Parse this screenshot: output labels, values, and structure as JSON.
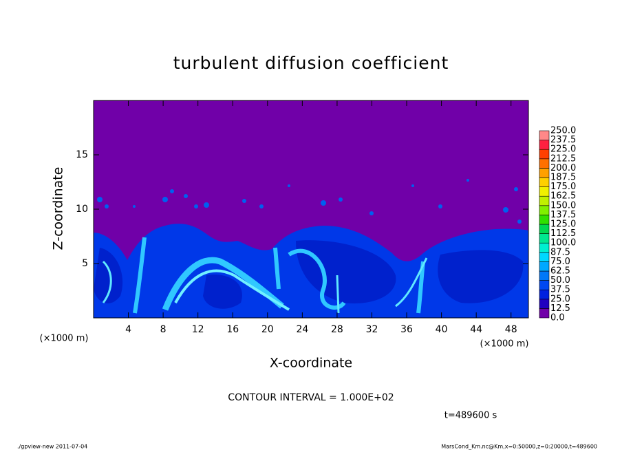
{
  "chart_data": {
    "type": "heatmap",
    "title": "turbulent diffusion coefficient",
    "xlabel": "X-coordinate",
    "ylabel": "Z-coordinate",
    "xlim": [
      0,
      50
    ],
    "ylim": [
      0,
      20
    ],
    "xticks": [
      4,
      8,
      12,
      16,
      20,
      24,
      28,
      32,
      36,
      40,
      44,
      48
    ],
    "yticks": [
      5,
      10,
      15
    ],
    "x_unit": "(×1000 m)",
    "y_unit": "(×1000 m)",
    "colorbar": {
      "levels": [
        {
          "value": 0,
          "label": "0.0"
        },
        {
          "value": 12.5,
          "label": "12.5"
        },
        {
          "value": 25,
          "label": "25.0"
        },
        {
          "value": 37.5,
          "label": "37.5"
        },
        {
          "value": 50,
          "label": "50.0"
        },
        {
          "value": 62.5,
          "label": "62.5"
        },
        {
          "value": 75,
          "label": "75.0"
        },
        {
          "value": 87.5,
          "label": "87.5"
        },
        {
          "value": 100,
          "label": "100.0"
        },
        {
          "value": 112.5,
          "label": "112.5"
        },
        {
          "value": 125,
          "label": "125.0"
        },
        {
          "value": 137.5,
          "label": "137.5"
        },
        {
          "value": 150,
          "label": "150.0"
        },
        {
          "value": 162.5,
          "label": "162.5"
        },
        {
          "value": 175,
          "label": "175.0"
        },
        {
          "value": 187.5,
          "label": "187.5"
        },
        {
          "value": 200,
          "label": "200.0"
        },
        {
          "value": 212.5,
          "label": "212.5"
        },
        {
          "value": 225,
          "label": "225.0"
        },
        {
          "value": 237.5,
          "label": "237.5"
        },
        {
          "value": 250,
          "label": "250.0"
        }
      ],
      "colors": [
        "#7000a8",
        "#2000c0",
        "#0020e0",
        "#0048f0",
        "#0078f8",
        "#00a8ff",
        "#00d8ff",
        "#00f0d0",
        "#00e890",
        "#00d850",
        "#30e000",
        "#80f000",
        "#c0f000",
        "#f0f000",
        "#ffd000",
        "#ffa000",
        "#ff7000",
        "#ff4000",
        "#ff2040",
        "#ff8888"
      ]
    },
    "contour_interval": "CONTOUR INTERVAL = 1.000E+02",
    "time_label": "t=489600 s",
    "footer_left": "./gpview-new  2011-07-04",
    "footer_right": "MarsCond_Km.nc@Km,x=0:50000,z=0:20000,t=489600"
  }
}
